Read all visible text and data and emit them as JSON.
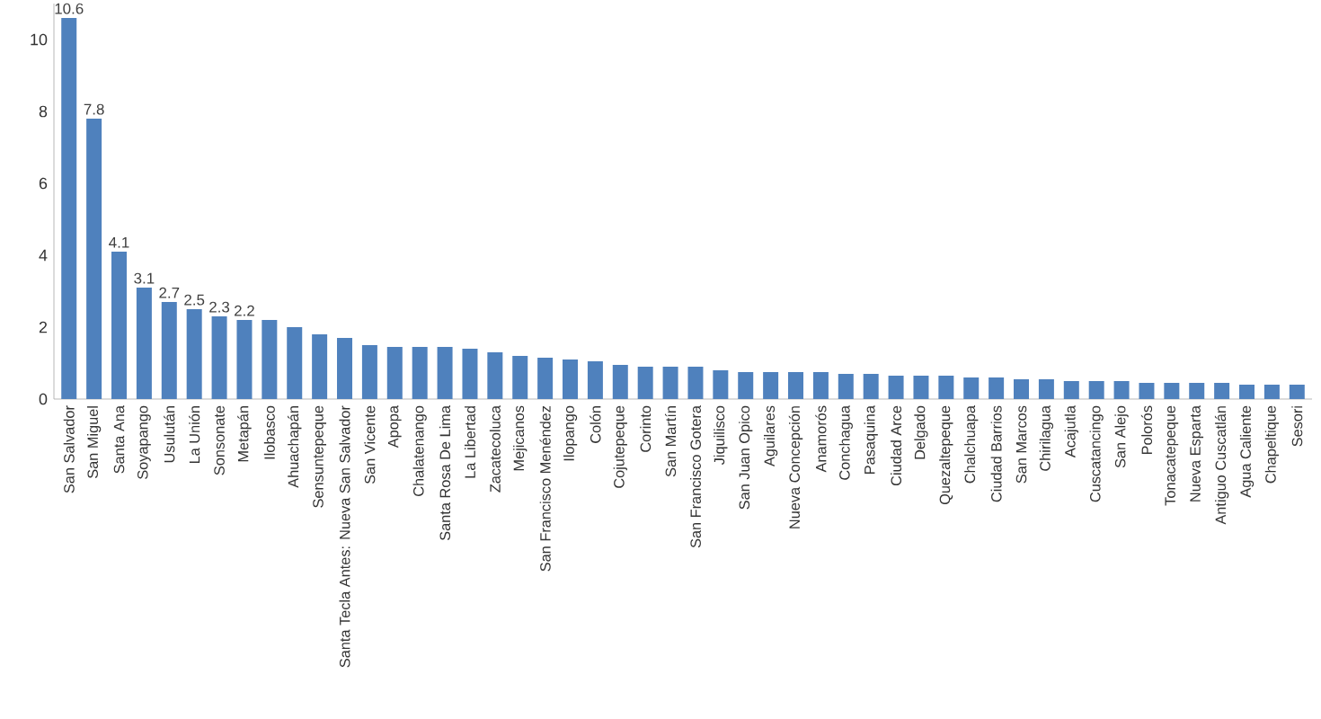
{
  "chart_data": {
    "type": "bar",
    "color": "#4f81bd",
    "ylim": [
      0,
      11
    ],
    "yticks": [
      0,
      2,
      4,
      6,
      8,
      10
    ],
    "categories": [
      "San Salvador",
      "San Miguel",
      "Santa Ana",
      "Soyapango",
      "Usulután",
      "La Unión",
      "Sonsonate",
      "Metapán",
      "Ilobasco",
      "Ahuachapán",
      "Sensuntepeque",
      "Santa Tecla Antes: Nueva San Salvador",
      "San Vicente",
      "Apopa",
      "Chalatenango",
      "Santa Rosa De Lima",
      "La Libertad",
      "Zacatecoluca",
      "Mejicanos",
      "San Francisco Menéndez",
      "Ilopango",
      "Colón",
      "Cojutepeque",
      "Corinto",
      "San Martín",
      "San Francisco Gotera",
      "Jiquilisco",
      "San Juan Opico",
      "Aguilares",
      "Nueva Concepción",
      "Anamorós",
      "Conchagua",
      "Pasaquina",
      "Ciudad Arce",
      "Delgado",
      "Quezaltepeque",
      "Chalchuapa",
      "Ciudad Barrios",
      "San Marcos",
      "Chirilagua",
      "Acajutla",
      "Cuscatancingo",
      "San Alejo",
      "Polorós",
      "Tonacatepeque",
      "Nueva Esparta",
      "Antiguo Cuscatlán",
      "Agua Caliente",
      "Chapeltique",
      "Sesori"
    ],
    "values": [
      10.6,
      7.8,
      4.1,
      3.1,
      2.7,
      2.5,
      2.3,
      2.2,
      2.2,
      2.0,
      1.8,
      1.7,
      1.5,
      1.45,
      1.45,
      1.45,
      1.4,
      1.3,
      1.2,
      1.15,
      1.1,
      1.05,
      0.95,
      0.9,
      0.9,
      0.9,
      0.8,
      0.75,
      0.75,
      0.75,
      0.75,
      0.7,
      0.7,
      0.65,
      0.65,
      0.65,
      0.6,
      0.6,
      0.55,
      0.55,
      0.5,
      0.5,
      0.5,
      0.45,
      0.45,
      0.45,
      0.45,
      0.4,
      0.4,
      0.4
    ],
    "value_labels": [
      "10.6",
      "7.8",
      "4.1",
      "3.1",
      "2.7",
      "2.5",
      "2.3",
      "2.2",
      null,
      null,
      null,
      null,
      null,
      null,
      null,
      null,
      null,
      null,
      null,
      null,
      null,
      null,
      null,
      null,
      null,
      null,
      null,
      null,
      null,
      null,
      null,
      null,
      null,
      null,
      null,
      null,
      null,
      null,
      null,
      null,
      null,
      null,
      null,
      null,
      null,
      null,
      null,
      null,
      null,
      null
    ],
    "grid": false
  }
}
